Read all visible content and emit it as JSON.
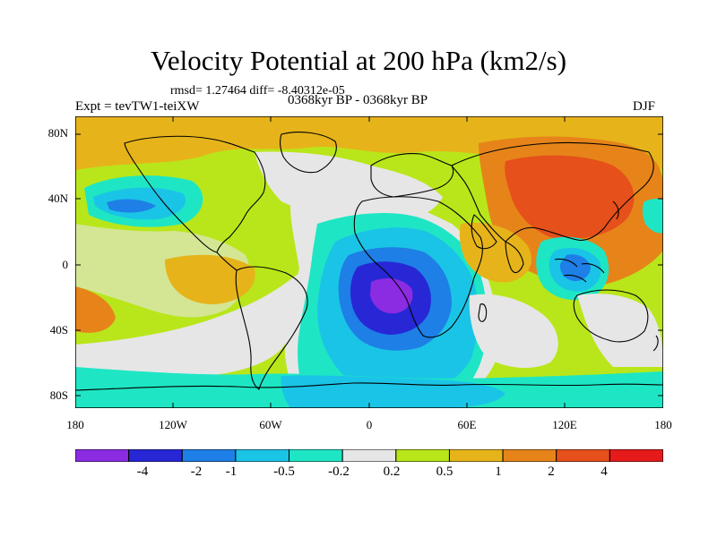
{
  "title": "Velocity Potential at 200 hPa (km2/s)",
  "stats_line": "rmsd= 1.27464 diff= -8.40312e-05",
  "experiment": "Expt = tevTW1-teiXW",
  "period": "0368kyr BP - 0368kyr BP",
  "season": "DJF",
  "latitude_labels": [
    "80N",
    "40N",
    "0",
    "40S",
    "80S"
  ],
  "longitude_labels": [
    "180",
    "120W",
    "60W",
    "0",
    "60E",
    "120E",
    "180"
  ],
  "colorbar": {
    "labels": [
      "-4",
      "-2",
      "-1",
      "-0.5",
      "-0.2",
      "0.2",
      "0.5",
      "1",
      "2",
      "4"
    ],
    "colors": [
      "#8b2be2",
      "#2727d6",
      "#1e7fe6",
      "#1ac4e6",
      "#1ee6c4",
      "#e6e6e6",
      "#b9e61a",
      "#e6b41a",
      "#e6841a",
      "#e6501a",
      "#e61a1a"
    ]
  }
}
